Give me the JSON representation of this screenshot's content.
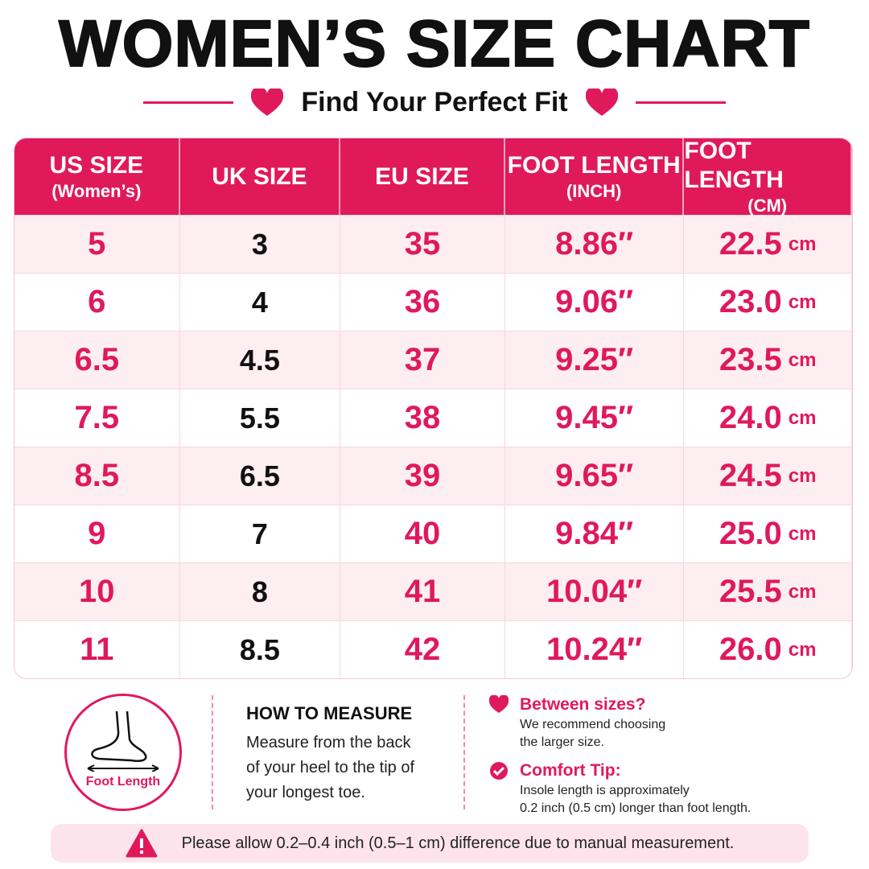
{
  "header": {
    "title": "WOMEN’S SIZE CHART",
    "subtitle": "Find Your Perfect Fit"
  },
  "table": {
    "columns": [
      [
        "US SIZE",
        "(Women’s)"
      ],
      [
        "UK SIZE"
      ],
      [
        "EU SIZE"
      ],
      [
        "FOOT LENGTH",
        "(INCH)"
      ],
      [
        "FOOT LENGTH",
        "(CM)"
      ]
    ],
    "rows": [
      [
        "5",
        "3",
        "35",
        "8.86″",
        "22.5",
        "cm"
      ],
      [
        "6",
        "4",
        "36",
        "9.06″",
        "23.0",
        "cm"
      ],
      [
        "6.5",
        "4.5",
        "37",
        "9.25″",
        "23.5",
        "cm"
      ],
      [
        "7.5",
        "5.5",
        "38",
        "9.45″",
        "24.0",
        "cm"
      ],
      [
        "8.5",
        "6.5",
        "39",
        "9.65″",
        "24.5",
        "cm"
      ],
      [
        "9",
        "7",
        "40",
        "9.84″",
        "25.0",
        "cm"
      ],
      [
        "10",
        "8",
        "41",
        "10.04″",
        "25.5",
        "cm"
      ],
      [
        "11",
        "8.5",
        "42",
        "10.24″",
        "26.0",
        "cm"
      ]
    ]
  },
  "measure": {
    "icon_label": "Foot Length",
    "title": "HOW TO MEASURE",
    "lines": [
      "Measure from the back",
      "of your heel to the tip of",
      "your longest toe."
    ]
  },
  "tips": [
    {
      "title": "Between sizes?",
      "lines": [
        "We recommend choosing",
        "the larger size."
      ]
    },
    {
      "title": "Comfort Tip:",
      "lines": [
        "Insole length is approximately",
        "0.2 inch (0.5 cm) longer than foot length."
      ]
    }
  ],
  "footer": {
    "note": "Please allow 0.2–0.4 inch (0.5–1 cm) difference due to manual measurement."
  }
}
